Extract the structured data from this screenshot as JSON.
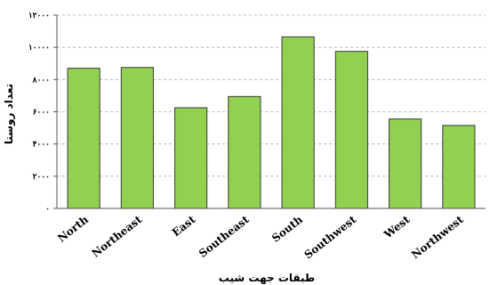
{
  "chart_data": {
    "type": "bar",
    "categories": [
      "North",
      "Northeast",
      "East",
      "Southeast",
      "South",
      "Southwest",
      "West",
      "Northwest"
    ],
    "values": [
      8700,
      8750,
      6250,
      6950,
      10650,
      9750,
      5550,
      5150
    ],
    "ylim": [
      0,
      12000
    ],
    "yticks": [
      0,
      2000,
      4000,
      6000,
      8000,
      10000,
      12000
    ],
    "ytick_labels": [
      "۰",
      "۲۰۰۰",
      "۴۰۰۰",
      "۶۰۰۰",
      "۸۰۰۰",
      "۱۰۰۰۰",
      "۱۲۰۰۰"
    ],
    "xlabel": "طبقات جهت شیب",
    "ylabel": "تعداد روستا",
    "grid": true,
    "bar_color": "#92d050",
    "bar_edge_color": "#3a3a3a"
  }
}
